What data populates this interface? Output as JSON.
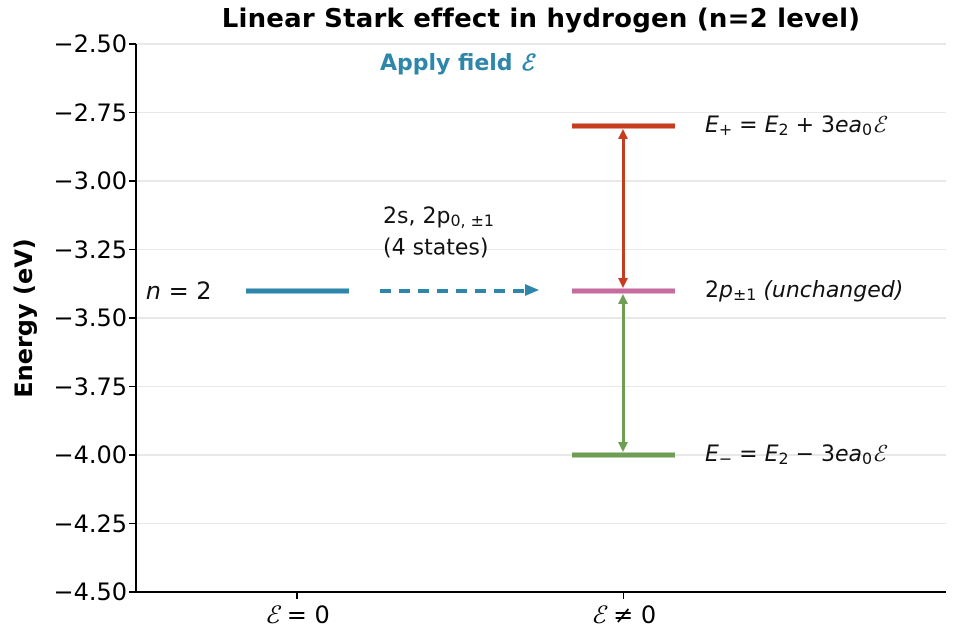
{
  "chart_data": {
    "type": "energy-level-diagram",
    "title": "Linear Stark effect in hydrogen (n=2 level)",
    "ylabel": "Energy (eV)",
    "ylim": [
      -4.5,
      -2.5
    ],
    "grid": true,
    "legend": false,
    "yticks": [
      -2.5,
      -2.75,
      -3.0,
      -3.25,
      -3.5,
      -3.75,
      -4.0,
      -4.25,
      -4.5
    ],
    "ytick_labels": [
      "−2.50",
      "−2.75",
      "−3.00",
      "−3.25",
      "−3.50",
      "−3.75",
      "−4.00",
      "−4.25",
      "−4.50"
    ],
    "xticks": [
      {
        "id": "field-zero",
        "x": 0.199,
        "text": "ℰ = 0",
        "segments": [
          {
            "t": "ℰ",
            "s": "scr"
          },
          {
            "t": " = 0",
            "s": ""
          }
        ]
      },
      {
        "id": "field-nonzero",
        "x": 0.602,
        "text": "ℰ ≠ 0",
        "segments": [
          {
            "t": "ℰ",
            "s": "scr"
          },
          {
            "t": " ≠ 0",
            "s": ""
          }
        ]
      }
    ],
    "colors": {
      "blue": "#2E86AB",
      "red": "#C53C1E",
      "pink": "#C66C9E",
      "green": "#6D9E54",
      "grid": "#e8e8e8",
      "spine": "#000000"
    },
    "levels": [
      {
        "name": "level-n2-initial",
        "x": 0.199,
        "halfwidth": 0.0635,
        "energy": -3.4,
        "color_key": "blue"
      },
      {
        "name": "level-e-plus",
        "x": 0.602,
        "halfwidth": 0.0635,
        "energy": -2.8,
        "color_key": "red"
      },
      {
        "name": "level-2p-unchanged",
        "x": 0.602,
        "halfwidth": 0.0635,
        "energy": -3.4,
        "color_key": "pink"
      },
      {
        "name": "level-e-minus",
        "x": 0.602,
        "halfwidth": 0.0635,
        "energy": -4.0,
        "color_key": "green"
      }
    ],
    "split_arrows": [
      {
        "name": "e-plus-shift-arrow",
        "x": 0.602,
        "from_energy": -2.8,
        "to_energy": -3.4,
        "color_key": "red"
      },
      {
        "name": "e-minus-shift-arrow",
        "x": 0.602,
        "from_energy": -3.4,
        "to_energy": -4.0,
        "color_key": "green"
      }
    ],
    "field_arrow": {
      "name": "apply-field-arrow",
      "x1": 0.301,
      "x2": 0.497,
      "energy": -3.4,
      "color_key": "blue"
    },
    "annotations": [
      {
        "name": "n2-level-label",
        "x": 0.012,
        "energy": -3.4,
        "anchor": "v",
        "size": 24,
        "text": "n = 2",
        "segments": [
          {
            "t": "n",
            "s": "i"
          },
          {
            "t": " = 2",
            "s": ""
          }
        ]
      },
      {
        "name": "apply-field-label",
        "x": 0.396,
        "energy": -2.57,
        "anchor": "c",
        "size": 22,
        "color_key": "blue",
        "text": "Apply field ℰ",
        "segments": [
          {
            "t": "Apply field ",
            "s": "b"
          },
          {
            "t": "ℰ",
            "s": "scr b"
          }
        ]
      },
      {
        "name": "states-annotation-line1",
        "x": 0.305,
        "energy": -3.13,
        "anchor": "v",
        "size": 22,
        "text": "2s, 2p0, ±1",
        "segments": [
          {
            "t": "2s, 2p",
            "s": ""
          },
          {
            "t": "0, ±1",
            "s": "sub"
          }
        ]
      },
      {
        "name": "states-annotation-line2",
        "x": 0.305,
        "energy": -3.245,
        "anchor": "v",
        "size": 22,
        "text": "(4 states)",
        "segments": [
          {
            "t": "(4 states)",
            "s": ""
          }
        ]
      },
      {
        "name": "e-plus-label",
        "x": 0.7025,
        "energy": -2.8,
        "anchor": "v",
        "size": 22,
        "text": "E₊ = E₂ + 3ea₀ℰ",
        "segments": [
          {
            "t": "E",
            "s": "i"
          },
          {
            "t": "+",
            "s": "sub"
          },
          {
            "t": " = ",
            "s": ""
          },
          {
            "t": "E",
            "s": "i"
          },
          {
            "t": "2",
            "s": "sub"
          },
          {
            "t": " + 3",
            "s": ""
          },
          {
            "t": "ea",
            "s": "i"
          },
          {
            "t": "0",
            "s": "sub"
          },
          {
            "t": "ℰ",
            "s": "scr"
          }
        ]
      },
      {
        "name": "2p-unchanged-label",
        "x": 0.7025,
        "energy": -3.4,
        "anchor": "v",
        "size": 22,
        "text": "2p±1 (unchanged)",
        "segments": [
          {
            "t": "2",
            "s": ""
          },
          {
            "t": "p",
            "s": "i"
          },
          {
            "t": "±1",
            "s": "sub"
          },
          {
            "t": " (unchanged)",
            "s": "i"
          }
        ]
      },
      {
        "name": "e-minus-label",
        "x": 0.7025,
        "energy": -4.0,
        "anchor": "v",
        "size": 22,
        "text": "E₋ = E₂ − 3ea₀ℰ",
        "segments": [
          {
            "t": "E",
            "s": "i"
          },
          {
            "t": "−",
            "s": "sub"
          },
          {
            "t": " = ",
            "s": ""
          },
          {
            "t": "E",
            "s": "i"
          },
          {
            "t": "2",
            "s": "sub"
          },
          {
            "t": " − 3",
            "s": ""
          },
          {
            "t": "ea",
            "s": "i"
          },
          {
            "t": "0",
            "s": "sub"
          },
          {
            "t": "ℰ",
            "s": "scr"
          }
        ]
      }
    ]
  }
}
